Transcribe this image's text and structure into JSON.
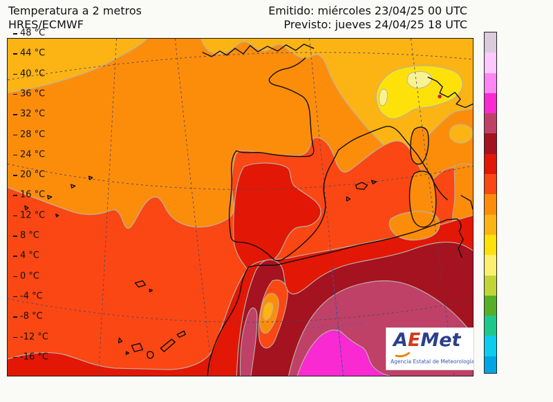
{
  "header": {
    "title_line1": "Temperatura a 2 metros",
    "title_line2": "HRES/ECMWF",
    "emitted": "Emitido: miércoles 23/04/25 00 UTC",
    "forecast": "Previsto: jueves 24/04/25 18 UTC"
  },
  "colorbar": {
    "unit": "°C",
    "tick_labels": [
      "48 °C",
      "44 °C",
      "40 °C",
      "36 °C",
      "32 °C",
      "28 °C",
      "24 °C",
      "20 °C",
      "16 °C",
      "12 °C",
      "8 °C",
      "4 °C",
      "0 °C",
      "-4 °C",
      "-8 °C",
      "-12 °C",
      "-16 °C"
    ],
    "band_colors": [
      "#dccadd",
      "#fec9fe",
      "#fe85f2",
      "#f92ad2",
      "#bf4168",
      "#a51220",
      "#e31705",
      "#fb4713",
      "#fc8d0b",
      "#fcb314",
      "#ffe10a",
      "#faf06e",
      "#c3d437",
      "#55b028",
      "#1ec88c",
      "#0acdf0",
      "#00a5e6"
    ]
  },
  "map": {
    "colors": {
      "orange": "#fc8d0b",
      "amber": "#fcb314",
      "yellow": "#ffe10a",
      "pale_yellow": "#f9f293",
      "orange_red": "#fb4713",
      "red": "#e31705",
      "dark_red": "#a51220",
      "carmine": "#bf4168",
      "magenta": "#f92ad2",
      "contour": "#b7b2a6",
      "coast": "#0d0d0d",
      "grid": "#4a4668",
      "grid_blue": "#3f5cc8"
    }
  },
  "logo": {
    "letter_a": "A",
    "letter_e": "E",
    "letters_met": "Met",
    "subtitle": "Agencia Estatal de Meteorología"
  }
}
